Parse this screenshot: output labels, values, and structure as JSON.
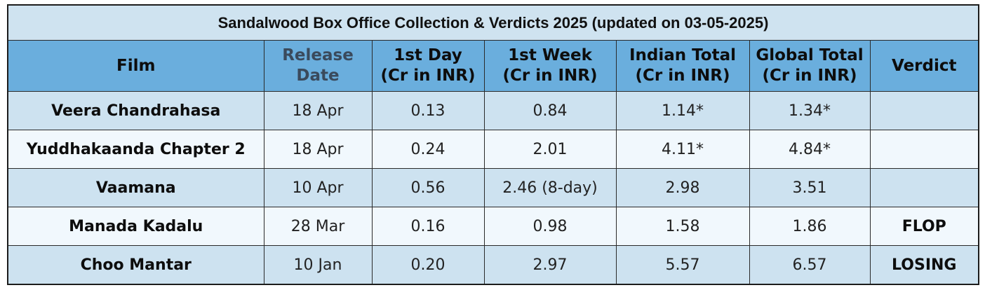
{
  "title": "Sandalwood Box Office Collection & Verdicts 2025 (updated on 03-05-2025)",
  "headers": {
    "film": "Film",
    "release": [
      "Release",
      "Date"
    ],
    "day1": [
      "1st Day",
      "(Cr in INR)"
    ],
    "week1": [
      "1st Week",
      "(Cr in INR)"
    ],
    "indian": [
      "Indian Total",
      "(Cr in INR)"
    ],
    "global": [
      "Global Total",
      "(Cr in INR)"
    ],
    "verdict": "Verdict"
  },
  "rows": [
    {
      "film": "Veera Chandrahasa",
      "release": "18 Apr",
      "day1": "0.13",
      "week1": "0.84",
      "indian": "1.14*",
      "global": "1.34*",
      "verdict": ""
    },
    {
      "film": "Yuddhakaanda Chapter 2",
      "release": "18 Apr",
      "day1": "0.24",
      "week1": "2.01",
      "indian": "4.11*",
      "global": "4.84*",
      "verdict": ""
    },
    {
      "film": "Vaamana",
      "release": "10 Apr",
      "day1": "0.56",
      "week1": "2.46 (8-day)",
      "indian": "2.98",
      "global": "3.51",
      "verdict": ""
    },
    {
      "film": "Manada Kadalu",
      "release": "28 Mar",
      "day1": "0.16",
      "week1": "0.98",
      "indian": "1.58",
      "global": "1.86",
      "verdict": "FLOP"
    },
    {
      "film": "Choo Mantar",
      "release": "10 Jan",
      "day1": "0.20",
      "week1": "2.97",
      "indian": "5.57",
      "global": "6.57",
      "verdict": "LOSING"
    }
  ],
  "colors": {
    "title_bg": "#cfe3f0",
    "header_bg": "#6aaedd",
    "row_odd_bg": "#cde2f0",
    "row_even_bg": "#f1f8fd",
    "border": "#1c1c1c"
  }
}
